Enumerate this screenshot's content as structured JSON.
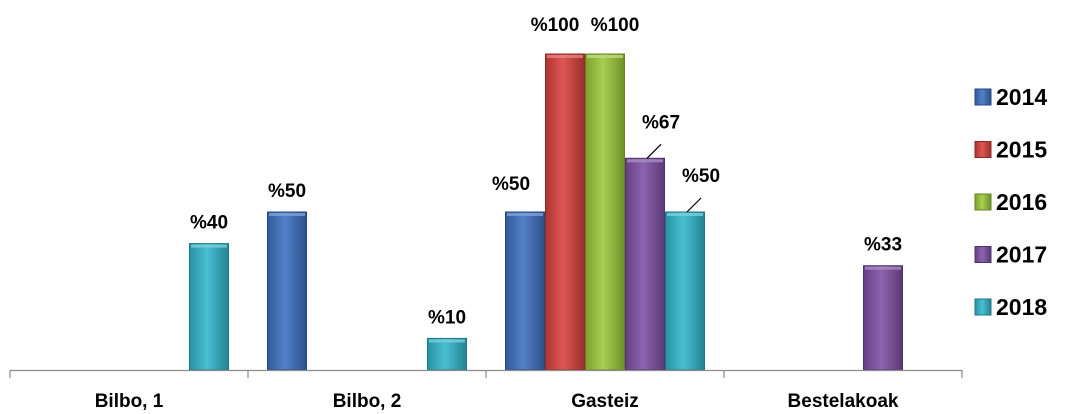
{
  "chart_data": {
    "type": "bar",
    "categories": [
      "Bilbo, 1",
      "Bilbo, 2",
      "Gasteiz",
      "Bestelakoak"
    ],
    "series": [
      {
        "name": "2014",
        "color": "#3b6fc0",
        "values": [
          null,
          50,
          50,
          null
        ],
        "labels": [
          null,
          "%50",
          "%50",
          null
        ]
      },
      {
        "name": "2015",
        "color": "#d9403b",
        "values": [
          null,
          null,
          100,
          null
        ],
        "labels": [
          null,
          null,
          "%100",
          null
        ]
      },
      {
        "name": "2016",
        "color": "#9cc83a",
        "values": [
          null,
          null,
          100,
          null
        ],
        "labels": [
          null,
          null,
          "%100",
          null
        ]
      },
      {
        "name": "2017",
        "color": "#7d4fa4",
        "values": [
          null,
          null,
          67,
          33
        ],
        "labels": [
          null,
          null,
          "%67",
          "%33"
        ]
      },
      {
        "name": "2018",
        "color": "#31b6cc",
        "values": [
          40,
          10,
          50,
          null
        ],
        "labels": [
          "%40",
          "%10",
          "%50",
          null
        ]
      }
    ],
    "ylim": [
      0,
      100
    ],
    "grid": false,
    "legend": "right",
    "title": "",
    "xlabel": "",
    "ylabel": ""
  }
}
